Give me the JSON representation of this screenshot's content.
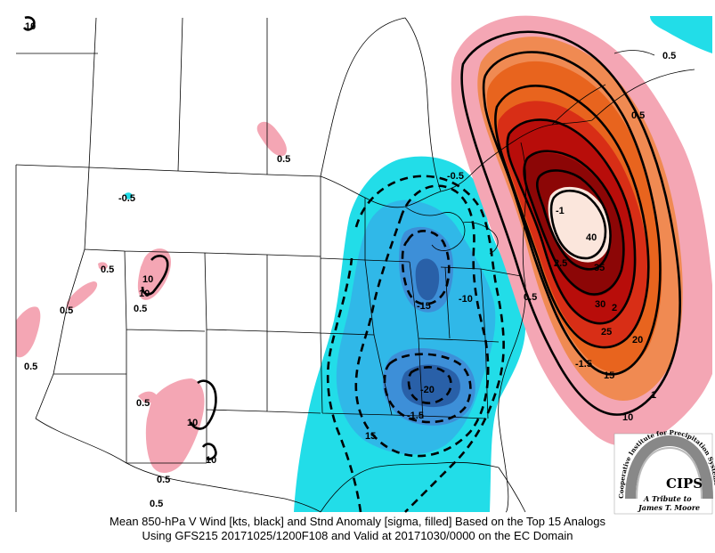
{
  "colors": {
    "pos_05": "#f4a6b4",
    "pos_1": "#f08a52",
    "pos_15": "#e8641e",
    "pos_2": "#d82e16",
    "pos_25": "#b80d0a",
    "pos_3": "#8c0606",
    "pos_4": "#fbe6dc",
    "neg_05": "#22dde8",
    "neg_1": "#30b8e8",
    "neg_15": "#3d8fd8",
    "neg_2": "#2960a8",
    "contour": "#000000",
    "boundary": "#000000",
    "background": "#ffffff"
  },
  "anomaly_labels": {
    "pos_05_a": "0.5",
    "pos_05_b": "0.5",
    "pos_05_c": "0.5",
    "pos_05_d": "0.5",
    "pos_05_e": "0.5",
    "pos_05_f": "0.5",
    "pos_05_g": "0.5",
    "pos_05_h": "0.5",
    "pos_05_ne": "0.5",
    "pos_05_east": "0.5",
    "pos_05_coast": "0.5",
    "pos_25": "2.5",
    "pos_2": "2",
    "neg_05_a": "-0.5",
    "neg_05_b": "-0.5",
    "neg_15": "-1.5",
    "neg_15_b": "-1.5",
    "neg_1_a": "-1"
  },
  "wind_labels": {
    "w10_a": "10",
    "w10_b": "10",
    "w10_c": "10",
    "w10_d": "10",
    "w10_e": "10",
    "w40": "40",
    "w35": "35",
    "w30": "30",
    "w25": "25",
    "w20": "20",
    "w15": "15",
    "w1": "1",
    "w10_f": "10",
    "wneg20": "-20",
    "wneg10": "-10",
    "wneg15": "-15",
    "w15_s": "15"
  },
  "caption": {
    "line1": "Mean 850-hPa V Wind [kts, black] and Stnd Anomaly [sigma, filled] Based on the Top 15 Analogs",
    "line2": "Using GFS215 20171025/1200F108 and Valid at 20171030/0000 on the EC Domain"
  },
  "logo": {
    "arc_text": "Cooperative Institute for Precipitation Systems",
    "acronym": "CIPS",
    "tribute_line1": "A Tribute to",
    "tribute_line2": "James T. Moore"
  }
}
